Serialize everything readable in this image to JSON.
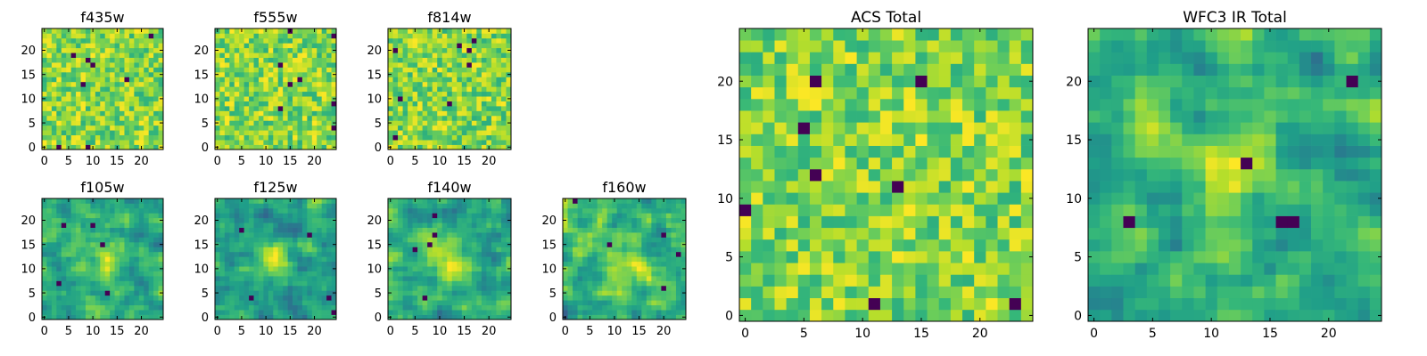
{
  "chart_data": [
    {
      "type": "heatmap",
      "title": "f435w",
      "grid_size": 25,
      "xlim": [
        0,
        24
      ],
      "ylim": [
        0,
        24
      ],
      "xticks": [
        0,
        5,
        10,
        15,
        20
      ],
      "yticks": [
        0,
        5,
        10,
        15,
        20
      ],
      "colormap": "viridis",
      "style": "noise"
    },
    {
      "type": "heatmap",
      "title": "f555w",
      "grid_size": 25,
      "xlim": [
        0,
        24
      ],
      "ylim": [
        0,
        24
      ],
      "xticks": [
        0,
        5,
        10,
        15,
        20
      ],
      "yticks": [
        0,
        5,
        10,
        15,
        20
      ],
      "colormap": "viridis",
      "style": "noise"
    },
    {
      "type": "heatmap",
      "title": "f814w",
      "grid_size": 25,
      "xlim": [
        0,
        24
      ],
      "ylim": [
        0,
        24
      ],
      "xticks": [
        0,
        5,
        10,
        15,
        20
      ],
      "yticks": [
        0,
        5,
        10,
        15,
        20
      ],
      "colormap": "viridis",
      "style": "noise"
    },
    {
      "type": "heatmap",
      "title": "f105w",
      "grid_size": 25,
      "xlim": [
        0,
        24
      ],
      "ylim": [
        0,
        24
      ],
      "xticks": [
        0,
        5,
        10,
        15,
        20
      ],
      "yticks": [
        0,
        5,
        10,
        15,
        20
      ],
      "colormap": "viridis",
      "style": "blob"
    },
    {
      "type": "heatmap",
      "title": "f125w",
      "grid_size": 25,
      "xlim": [
        0,
        24
      ],
      "ylim": [
        0,
        24
      ],
      "xticks": [
        0,
        5,
        10,
        15,
        20
      ],
      "yticks": [
        0,
        5,
        10,
        15,
        20
      ],
      "colormap": "viridis",
      "style": "blob"
    },
    {
      "type": "heatmap",
      "title": "f140w",
      "grid_size": 25,
      "xlim": [
        0,
        24
      ],
      "ylim": [
        0,
        24
      ],
      "xticks": [
        0,
        5,
        10,
        15,
        20
      ],
      "yticks": [
        0,
        5,
        10,
        15,
        20
      ],
      "colormap": "viridis",
      "style": "blob"
    },
    {
      "type": "heatmap",
      "title": "f160w",
      "grid_size": 25,
      "xlim": [
        0,
        24
      ],
      "ylim": [
        0,
        24
      ],
      "xticks": [
        0,
        5,
        10,
        15,
        20
      ],
      "yticks": [
        0,
        5,
        10,
        15,
        20
      ],
      "colormap": "viridis",
      "style": "blob"
    },
    {
      "type": "heatmap",
      "title": "ACS Total",
      "grid_size": 25,
      "xlim": [
        0,
        24
      ],
      "ylim": [
        0,
        24
      ],
      "xticks": [
        0,
        5,
        10,
        15,
        20
      ],
      "yticks": [
        0,
        5,
        10,
        15,
        20
      ],
      "colormap": "viridis",
      "style": "noise"
    },
    {
      "type": "heatmap",
      "title": "WFC3 IR Total",
      "grid_size": 25,
      "xlim": [
        0,
        24
      ],
      "ylim": [
        0,
        24
      ],
      "xticks": [
        0,
        5,
        10,
        15,
        20
      ],
      "yticks": [
        0,
        5,
        10,
        15,
        20
      ],
      "colormap": "viridis",
      "style": "blob"
    }
  ]
}
